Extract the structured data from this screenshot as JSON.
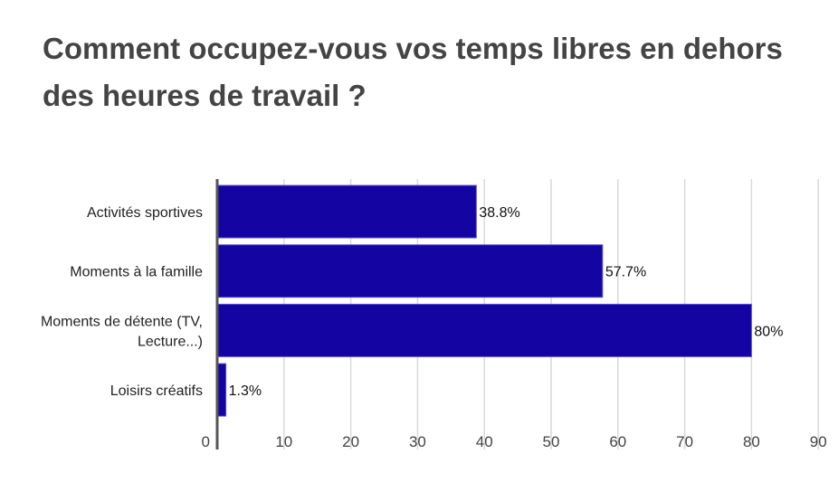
{
  "chart_data": {
    "type": "bar",
    "orientation": "horizontal",
    "title": "Comment occupez-vous vos temps libres en dehors des heures de travail ?",
    "categories": [
      [
        "Activités sportives"
      ],
      [
        "Moments à la famille"
      ],
      [
        "Moments de détente (TV,",
        "Lecture...)"
      ],
      [
        "Loisirs créatifs"
      ]
    ],
    "values": [
      38.8,
      57.7,
      80,
      1.3
    ],
    "data_labels": [
      "38.8%",
      "57.7%",
      "80%",
      "1.3%"
    ],
    "xlim": [
      0,
      90
    ],
    "xticks": [
      0,
      10,
      20,
      30,
      40,
      50,
      60,
      70,
      80,
      90
    ],
    "grid": true,
    "legend": "none",
    "bar_color": "#1405a3"
  }
}
